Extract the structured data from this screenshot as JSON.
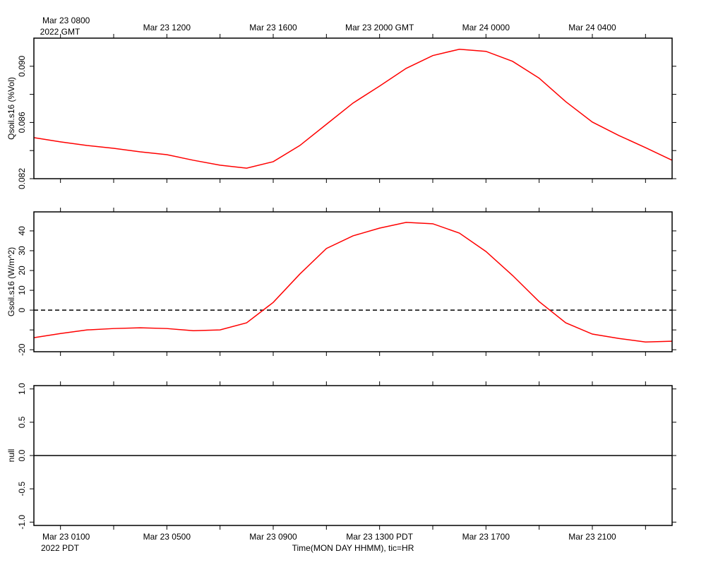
{
  "time_axis": {
    "xlim": [
      0,
      24
    ],
    "xticks": [
      {
        "value": 1,
        "label": "Mar 23 0100"
      },
      {
        "value": 5,
        "label": "Mar 23 0500"
      },
      {
        "value": 9,
        "label": "Mar 23 0900"
      },
      {
        "value": 13,
        "label": "Mar 23 1300 PDT"
      },
      {
        "value": 17,
        "label": "Mar 23 1700"
      },
      {
        "value": 21,
        "label": "Mar 23 2100"
      }
    ],
    "x2ticks": [
      {
        "value": 1,
        "label": "Mar 23 0800"
      },
      {
        "value": 5,
        "label": "Mar 23 1200"
      },
      {
        "value": 9,
        "label": "Mar 23 1600"
      },
      {
        "value": 13,
        "label": "Mar 23 2000 GMT"
      },
      {
        "value": 17,
        "label": "Mar 24 0000"
      },
      {
        "value": 21,
        "label": "Mar 24 0400"
      }
    ],
    "xminorticks": [
      3,
      7,
      11,
      15,
      19,
      23
    ],
    "xnote": "2022 PDT",
    "x2note": "2022 GMT",
    "label": "Time(MON DAY HHMM), tic=HR"
  },
  "chart_data": [
    {
      "type": "line",
      "ylabel": "Qsoil.s16 (%Vol)",
      "ylim": [
        0.082,
        0.092
      ],
      "yticks": [
        0.082,
        {
          "value": 0.086,
          "label": "0.086"
        },
        {
          "value": 0.09,
          "label": "0.090"
        }
      ],
      "yminorticks": [
        0.084,
        0.088
      ],
      "x": [
        0,
        1,
        2,
        3,
        4,
        5,
        6,
        7,
        8,
        9,
        10,
        11,
        12,
        13,
        14,
        15,
        16,
        17,
        18,
        19,
        20,
        21,
        22,
        23,
        24
      ],
      "series": [
        {
          "color": "#ff0000",
          "values": [
            0.08492,
            0.08462,
            0.08436,
            0.08416,
            0.08391,
            0.08371,
            0.08331,
            0.08296,
            0.08275,
            0.08321,
            0.08436,
            0.08587,
            0.08738,
            0.08859,
            0.08985,
            0.09076,
            0.09121,
            0.09106,
            0.09035,
            0.08915,
            0.08748,
            0.08603,
            0.08507,
            0.08421,
            0.08331
          ]
        }
      ]
    },
    {
      "type": "line",
      "ylabel": "Gsoil.s16 (W/m^2)",
      "ylim": [
        -21,
        49.6
      ],
      "yticks": [
        -20,
        0,
        10,
        20,
        30,
        40
      ],
      "yminorticks": [
        -10
      ],
      "hline": 0,
      "hline_style": "dashed",
      "x": [
        0,
        1,
        2,
        3,
        4,
        5,
        6,
        7,
        8,
        9,
        10,
        11,
        12,
        13,
        14,
        15,
        16,
        17,
        18,
        19,
        20,
        21,
        22,
        23,
        24
      ],
      "series": [
        {
          "color": "#ff0000",
          "values": [
            -13.9,
            -11.8,
            -10.0,
            -9.3,
            -8.9,
            -9.3,
            -10.4,
            -10.0,
            -6.4,
            3.9,
            18.2,
            31.1,
            37.5,
            41.4,
            44.3,
            43.6,
            38.9,
            29.6,
            17.5,
            4.3,
            -6.4,
            -12.1,
            -14.3,
            -16.1,
            -15.7
          ]
        }
      ]
    },
    {
      "type": "line",
      "ylabel": "null",
      "ylim": [
        -1.05,
        1.05
      ],
      "yticks": [
        {
          "value": -1,
          "label": "-1.0"
        },
        {
          "value": -0.5,
          "label": "-0.5"
        },
        {
          "value": 0,
          "label": "0.0"
        },
        {
          "value": 0.5,
          "label": "0.5"
        },
        {
          "value": 1,
          "label": "1.0"
        }
      ],
      "hline": 0,
      "hline_style": "solid",
      "series": []
    }
  ]
}
